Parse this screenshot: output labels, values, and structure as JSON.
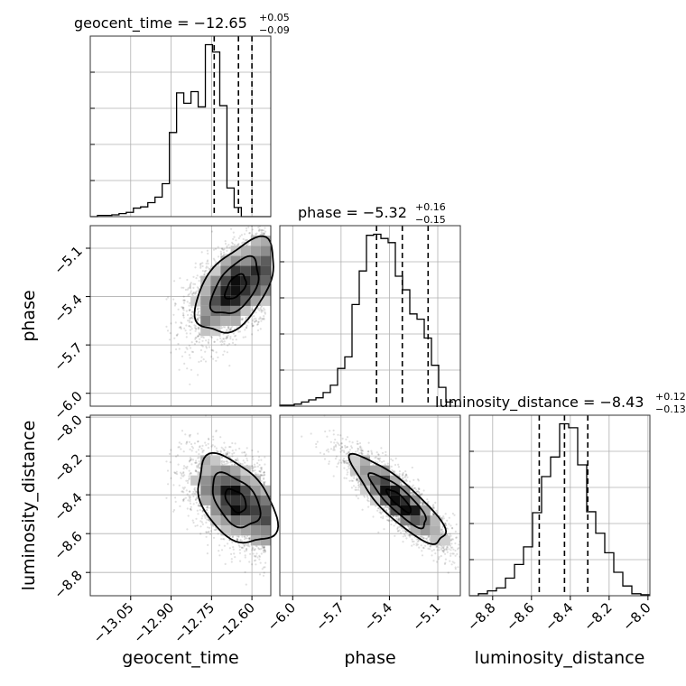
{
  "chart_data": {
    "type": "corner",
    "parameters": [
      {
        "name": "geocent_time",
        "axis_label": "geocent_time",
        "range": [
          -13.2,
          -12.53
        ],
        "ticks": [
          -13.05,
          -12.9,
          -12.75,
          -12.6
        ],
        "tick_labels": [
          "−13.05",
          "−12.90",
          "−12.75",
          "−12.60"
        ],
        "quantiles": [
          -12.74,
          -12.65,
          -12.6
        ],
        "title_main": "geocent_time = −12.65",
        "title_sup": "+0.05",
        "title_sub": "−0.09",
        "hist_bins": [
          -13.2,
          -13.1733,
          -13.1466,
          -13.1199,
          -13.0932,
          -13.0665,
          -13.0398,
          -13.0131,
          -12.9864,
          -12.9597,
          -12.933,
          -12.9063,
          -12.8796,
          -12.8529,
          -12.8262,
          -12.7995,
          -12.7728,
          -12.7461,
          -12.7194,
          -12.6927,
          -12.666,
          -12.6393,
          -12.6126,
          -12.5859,
          -12.5592,
          -12.53
        ],
        "hist_counts": [
          0,
          2,
          2,
          3,
          5,
          7,
          14,
          16,
          23,
          32,
          54,
          138,
          203,
          186,
          205,
          180,
          282,
          270,
          182,
          47,
          15,
          0,
          0,
          0,
          0
        ]
      },
      {
        "name": "phase",
        "axis_label": "phase",
        "range": [
          -6.08,
          -4.96
        ],
        "ticks": [
          -6.0,
          -5.7,
          -5.4,
          -5.1
        ],
        "tick_labels": [
          "−6.0",
          "−5.7",
          "−5.4",
          "−5.1"
        ],
        "quantiles": [
          -5.48,
          -5.32,
          -5.16
        ],
        "title_main": "phase = −5.32",
        "title_sup": "+0.16",
        "title_sub": "−0.15",
        "hist_bins": [
          -6.08,
          -6.0352,
          -5.9904,
          -5.9456,
          -5.9008,
          -5.856,
          -5.8112,
          -5.7664,
          -5.7216,
          -5.6768,
          -5.632,
          -5.5872,
          -5.5424,
          -5.4976,
          -5.4528,
          -5.408,
          -5.3632,
          -5.3184,
          -5.2736,
          -5.2288,
          -5.184,
          -5.1392,
          -5.0944,
          -5.0496,
          -5.0048
        ],
        "hist_counts": [
          1,
          1,
          2,
          4,
          6,
          8,
          13,
          20,
          36,
          47,
          97,
          129,
          163,
          164,
          160,
          156,
          124,
          111,
          88,
          83,
          65,
          39,
          18,
          4
        ]
      },
      {
        "name": "luminosity_distance",
        "axis_label": "luminosity_distance",
        "range": [
          -8.92,
          -7.99
        ],
        "ticks": [
          -8.8,
          -8.6,
          -8.4,
          -8.2,
          -8.0
        ],
        "tick_labels": [
          "−8.8",
          "−8.6",
          "−8.4",
          "−8.2",
          "−8.0"
        ],
        "quantiles": [
          -8.56,
          -8.43,
          -8.31
        ],
        "title_main": "luminosity_distance = −8.43",
        "title_sup": "+0.12",
        "title_sub": "−0.13",
        "hist_bins": [
          -8.92,
          -8.8735,
          -8.827,
          -8.7805,
          -8.734,
          -8.6875,
          -8.641,
          -8.5945,
          -8.548,
          -8.5015,
          -8.455,
          -8.4085,
          -8.362,
          -8.3155,
          -8.269,
          -8.2225,
          -8.176,
          -8.1295,
          -8.083,
          -8.0365,
          -7.99
        ],
        "hist_counts": [
          0,
          2,
          5,
          8,
          18,
          32,
          50,
          85,
          122,
          142,
          176,
          172,
          134,
          86,
          64,
          44,
          24,
          10,
          2,
          1
        ]
      }
    ],
    "correlations": {
      "phase_vs_geocent_time": 0.55,
      "luminosity_distance_vs_geocent_time": -0.05,
      "luminosity_distance_vs_phase": -0.85
    },
    "grid": true,
    "colors": {
      "hist": "#000000",
      "points": "#7f7f7f",
      "density": "#000000",
      "grid": "#b0b0b0"
    }
  }
}
